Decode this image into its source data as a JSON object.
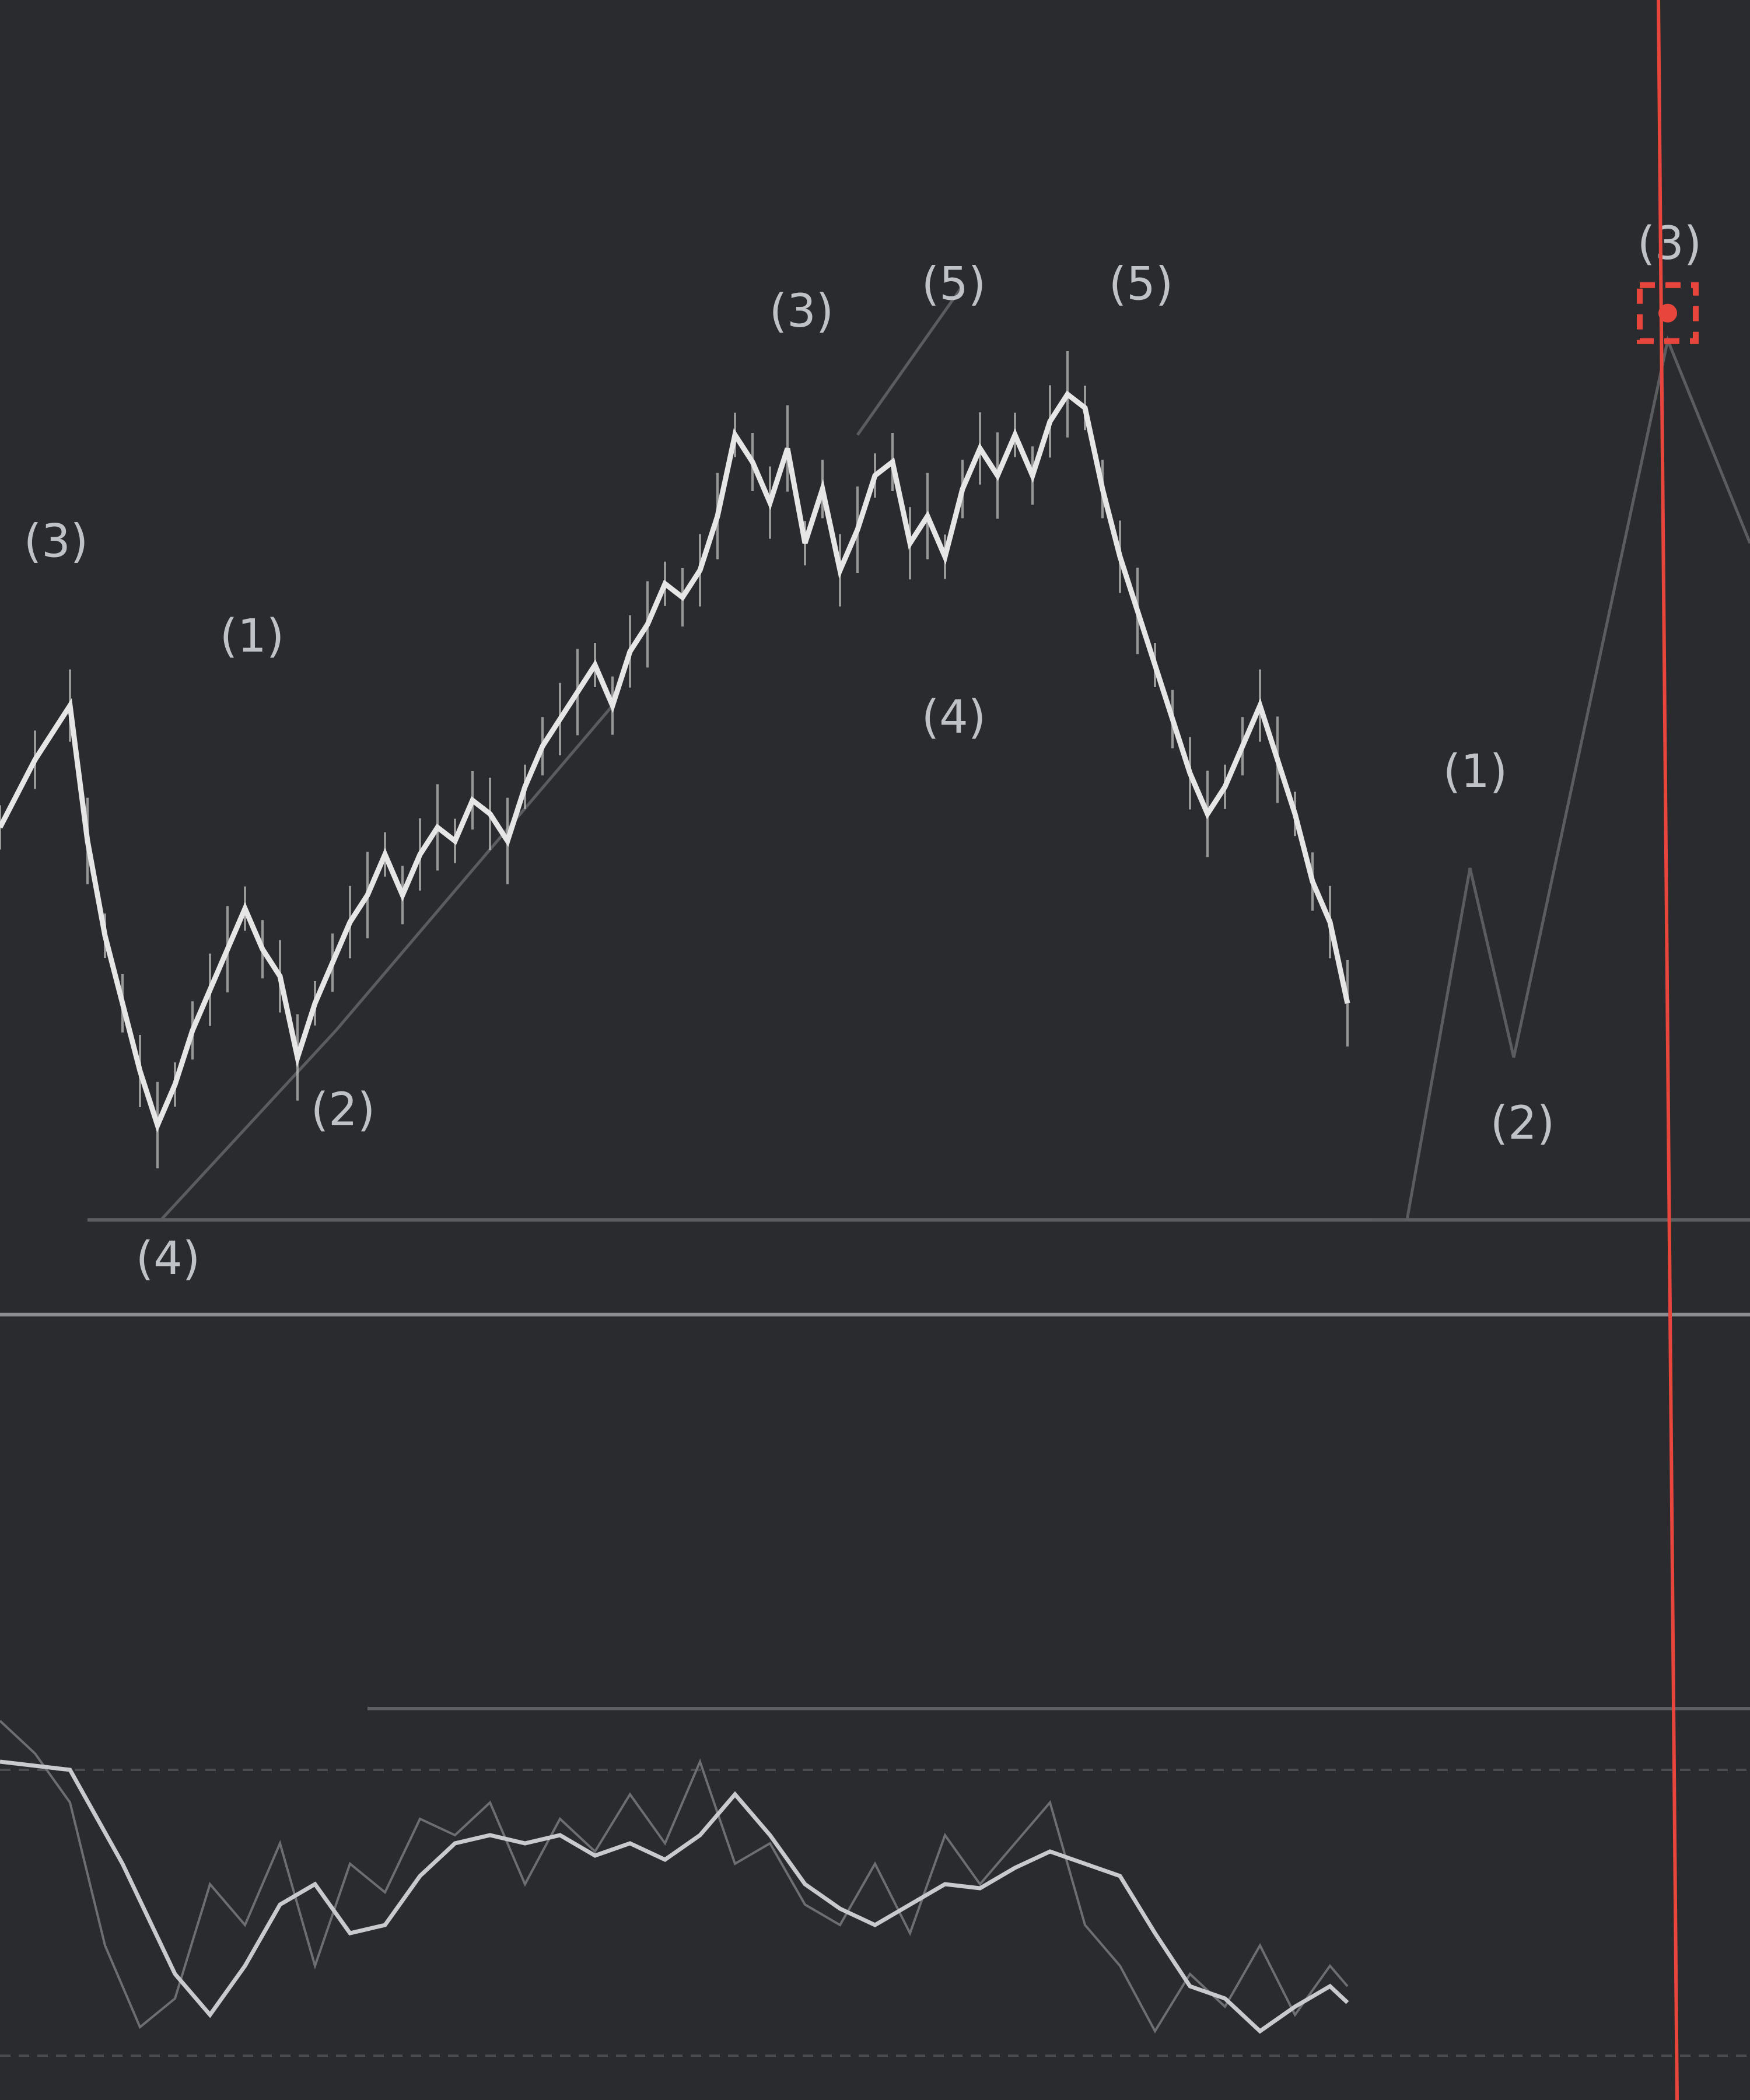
{
  "chart_data": {
    "type": "line",
    "title": "",
    "xlabel": "",
    "ylabel": "",
    "grid": false,
    "legend": "none",
    "colors": {
      "background": "#2a2b2e",
      "price": "#e6e6e6",
      "wave_lines": "#5a5c60",
      "levels": "#5d5f63",
      "oscillator_slow": "#c9cacd",
      "oscillator_fast": "#6c6e72",
      "cursor_line": "#e8453c",
      "cursor_marker": "#e8453c"
    },
    "x_range": [
      0,
      100
    ],
    "price_y_range": [
      0,
      100
    ],
    "price_series": {
      "x": [
        0,
        2,
        4,
        5,
        6,
        7,
        8,
        9,
        10,
        11,
        12,
        13,
        14,
        15,
        16,
        17,
        18,
        19,
        20,
        21,
        22,
        23,
        24,
        25,
        26,
        27,
        28,
        29,
        30,
        31,
        32,
        33,
        34,
        35,
        36,
        37,
        38,
        39,
        40,
        41,
        42,
        43,
        44,
        45,
        46,
        47,
        48,
        49,
        50,
        51,
        52,
        53,
        54,
        55,
        56,
        57,
        58,
        59,
        60,
        61,
        62,
        63,
        64,
        65,
        66,
        67,
        68,
        69,
        70,
        71,
        72,
        73,
        74,
        75,
        76,
        77
      ],
      "y": [
        63,
        68,
        72,
        62,
        55,
        50,
        45,
        41,
        44,
        48,
        51,
        54,
        57,
        54,
        52,
        46,
        50,
        53,
        56,
        58,
        61,
        58,
        61,
        63,
        62,
        65,
        64,
        62,
        66,
        69,
        71,
        73,
        75,
        72,
        76,
        78,
        81,
        80,
        82,
        86,
        92,
        90,
        87,
        91,
        84,
        88,
        82,
        85,
        89,
        90,
        84,
        86,
        83,
        88,
        91,
        89,
        92,
        89,
        93,
        95,
        94,
        88,
        83,
        79,
        75,
        71,
        67,
        64,
        66,
        69,
        72,
        68,
        64,
        59,
        56,
        50
      ]
    },
    "wave_counts": [
      {
        "label": "(3)",
        "x": 3.2,
        "y": 83
      },
      {
        "label": "(1)",
        "x": 14.4,
        "y": 76
      },
      {
        "label": "(2)",
        "x": 19.6,
        "y": 41
      },
      {
        "label": "(4)",
        "x": 9.6,
        "y": 30
      },
      {
        "label": "(3)",
        "x": 45.8,
        "y": 100
      },
      {
        "label": "(5)",
        "x": 54.5,
        "y": 102
      },
      {
        "label": "(4)",
        "x": 54.5,
        "y": 70
      },
      {
        "label": "(5)",
        "x": 65.2,
        "y": 102
      },
      {
        "label": "(1)",
        "x": 84.3,
        "y": 66
      },
      {
        "label": "(2)",
        "x": 87.0,
        "y": 40
      },
      {
        "label": "(3)",
        "x": 95.4,
        "y": 105
      }
    ],
    "projection_path": {
      "x": [
        78.4,
        80.4,
        84.0,
        86.5,
        95.3,
        100
      ],
      "y": [
        34,
        34,
        60,
        46,
        99,
        84
      ]
    },
    "wave_connectors": [
      {
        "x": [
          9.2,
          19.2,
          35.0
        ],
        "y": [
          34,
          48,
          72
        ]
      },
      {
        "x": [
          49.0,
          55.0
        ],
        "y": [
          92,
          103
        ]
      }
    ],
    "levels": [
      {
        "y": 34,
        "x_from": 5
      },
      {
        "y": 27,
        "x_from": 0,
        "bright": true
      }
    ],
    "oscillator": {
      "y_range": [
        0,
        100
      ],
      "upper_level": 78,
      "lower_level": 8,
      "top_line": 93,
      "slow": {
        "x": [
          0,
          4,
          7,
          10,
          12,
          14,
          16,
          18,
          20,
          22,
          24,
          26,
          28,
          30,
          32,
          34,
          36,
          38,
          40,
          42,
          44,
          46,
          48,
          50,
          52,
          54,
          56,
          58,
          60,
          62,
          64,
          66,
          68,
          70,
          72,
          74,
          76,
          77
        ],
        "y": [
          80,
          78,
          55,
          28,
          18,
          30,
          45,
          50,
          38,
          40,
          52,
          60,
          62,
          60,
          62,
          57,
          60,
          56,
          62,
          72,
          62,
          50,
          44,
          40,
          45,
          50,
          49,
          54,
          58,
          55,
          52,
          38,
          25,
          22,
          14,
          20,
          25,
          21
        ]
      },
      "fast": {
        "x": [
          0,
          2,
          4,
          6,
          8,
          10,
          12,
          14,
          16,
          18,
          20,
          22,
          24,
          26,
          28,
          30,
          32,
          34,
          36,
          38,
          40,
          42,
          44,
          46,
          48,
          50,
          52,
          54,
          56,
          58,
          60,
          62,
          64,
          66,
          68,
          70,
          72,
          74,
          76,
          77
        ],
        "y": [
          90,
          82,
          70,
          35,
          15,
          22,
          50,
          40,
          60,
          30,
          55,
          48,
          66,
          62,
          70,
          50,
          66,
          58,
          72,
          60,
          80,
          55,
          60,
          45,
          40,
          55,
          38,
          62,
          50,
          60,
          70,
          40,
          30,
          14,
          28,
          20,
          35,
          18,
          30,
          25
        ]
      }
    },
    "cursor": {
      "x": 95.3,
      "label": "(3)"
    }
  }
}
